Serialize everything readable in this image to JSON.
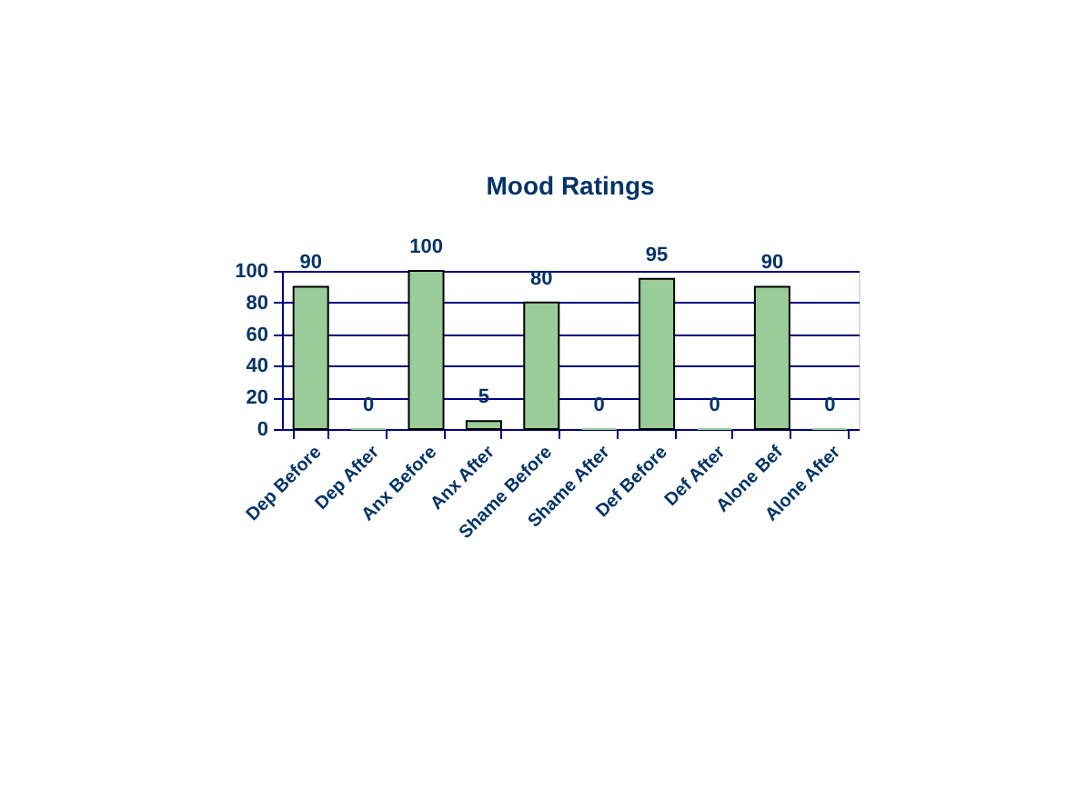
{
  "chart_data": {
    "type": "bar",
    "title": "Mood Ratings",
    "categories": [
      "Dep Before",
      "Dep After",
      "Anx Before",
      "Anx After",
      "Shame Before",
      "Shame After",
      "Def Before",
      "Def After",
      "Alone Bef",
      "Alone After"
    ],
    "values": [
      90,
      0,
      100,
      5,
      80,
      0,
      95,
      0,
      90,
      0
    ],
    "color": "#99cc99",
    "ylim": [
      0,
      100
    ],
    "yticks": [
      0,
      20,
      40,
      60,
      80,
      100
    ],
    "grid": "y",
    "data_labels": true
  }
}
